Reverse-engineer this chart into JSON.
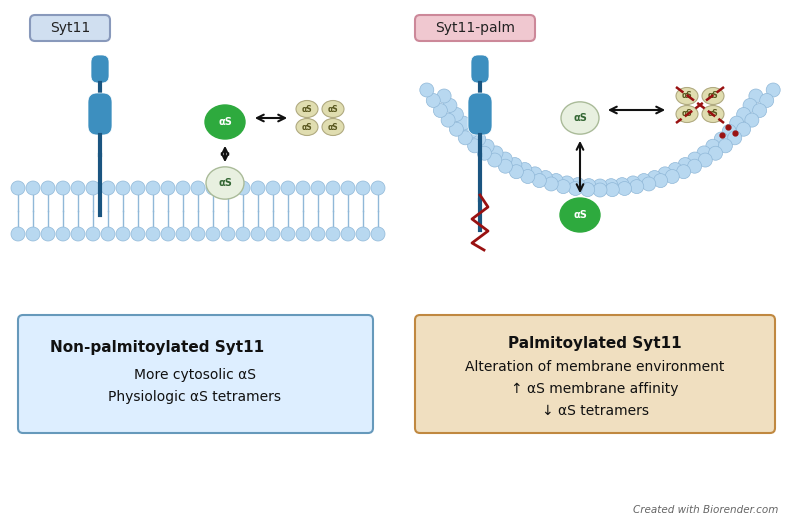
{
  "fig_width": 8.0,
  "fig_height": 5.29,
  "bg_color": "#ffffff",
  "left_label": "Syt11",
  "right_label": "Syt11-palm",
  "left_label_box_fc": "#d0dff0",
  "left_label_box_ec": "#8899bb",
  "right_label_box_fc": "#f0c8d0",
  "right_label_box_ec": "#cc8899",
  "left_box_bg": "#ddeeff",
  "left_box_border": "#6699bb",
  "right_box_bg": "#f0dfc0",
  "right_box_border": "#c08840",
  "left_box_text_bold": "Non-palmitoylated Syt11",
  "left_box_text_lines": [
    "More cytosolic αS",
    "Physiologic αS tetramers"
  ],
  "right_box_text_bold": "Palmitoylated Syt11",
  "right_box_text_lines": [
    "Alteration of membrane environment",
    "↑ αS membrane affinity",
    "↓ αS tetramers"
  ],
  "protein_color": "#3d8fbf",
  "protein_dark": "#1a5580",
  "aS_green": "#2eaa3e",
  "membrane_color": "#b8d8f0",
  "membrane_ec": "#90b8d8",
  "arrow_color": "#111111",
  "red_color": "#991111",
  "watermark": "Created with Biorender.com"
}
